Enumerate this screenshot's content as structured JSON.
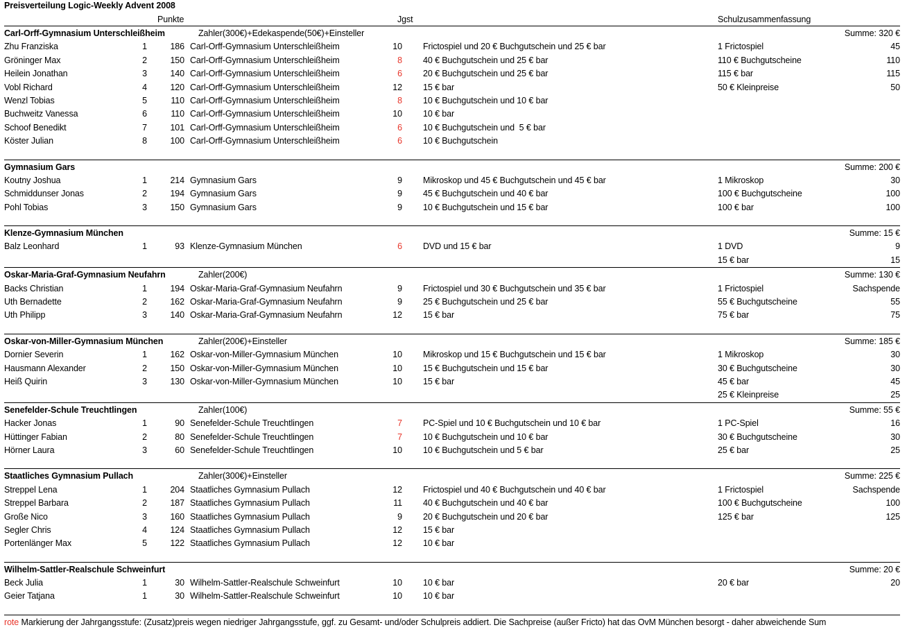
{
  "title": "Preisverteilung Logic-Weekly Advent 2008",
  "column_headers": {
    "punkte": "Punkte",
    "jgst": "Jgst",
    "schulzusammenfassung": "Schulzusammenfassung"
  },
  "colors": {
    "accent_red": "#e8352a",
    "text": "#000000",
    "background": "#ffffff"
  },
  "footer": {
    "highlight": "rote",
    "text": " Markierung der Jahrgangsstufe: (Zusatz)preis wegen niedriger Jahrgangsstufe, ggf. zu Gesamt- und/oder Schulpreis addiert. Die Sachpreise (außer Fricto) hat das OvM München besorgt - daher abweichende Sum"
  },
  "sections": [
    {
      "school": "Carl-Orff-Gymnasium Unterschleißheim",
      "payer": "Zahler(300€)+Edekaspende(50€)+Einsteller",
      "summe": "Summe: 320 €",
      "spacer": true,
      "rows": [
        {
          "name": "Zhu Franziska",
          "rank": "1",
          "points": "186",
          "school": "Carl-Orff-Gymnasium Unterschleißheim",
          "jgst": "10",
          "jgst_red": false,
          "prize": "Frictospiel und 20 € Buchgutschein und 25 € bar",
          "sum_label": "1 Frictospiel",
          "sum_value": "45"
        },
        {
          "name": "Gröninger Max",
          "rank": "2",
          "points": "150",
          "school": "Carl-Orff-Gymnasium Unterschleißheim",
          "jgst": "8",
          "jgst_red": true,
          "prize": "40 € Buchgutschein und 25 € bar",
          "sum_label": "110 € Buchgutscheine",
          "sum_value": "110"
        },
        {
          "name": "Heilein Jonathan",
          "rank": "3",
          "points": "140",
          "school": "Carl-Orff-Gymnasium Unterschleißheim",
          "jgst": "6",
          "jgst_red": true,
          "prize": "20 € Buchgutschein und 25 € bar",
          "sum_label": "115 € bar",
          "sum_value": "115"
        },
        {
          "name": "Vobl Richard",
          "rank": "4",
          "points": "120",
          "school": "Carl-Orff-Gymnasium Unterschleißheim",
          "jgst": "12",
          "jgst_red": false,
          "prize": "15 € bar",
          "sum_label": "50 € Kleinpreise",
          "sum_value": "50"
        },
        {
          "name": "Wenzl Tobias",
          "rank": "5",
          "points": "110",
          "school": "Carl-Orff-Gymnasium Unterschleißheim",
          "jgst": "8",
          "jgst_red": true,
          "prize": "10 € Buchgutschein und 10 € bar",
          "sum_label": "",
          "sum_value": ""
        },
        {
          "name": "Buchweitz Vanessa",
          "rank": "6",
          "points": "110",
          "school": "Carl-Orff-Gymnasium Unterschleißheim",
          "jgst": "10",
          "jgst_red": false,
          "prize": "10 € bar",
          "sum_label": "",
          "sum_value": ""
        },
        {
          "name": "Schoof Benedikt",
          "rank": "7",
          "points": "101",
          "school": "Carl-Orff-Gymnasium Unterschleißheim",
          "jgst": "6",
          "jgst_red": true,
          "prize": "10 € Buchgutschein und  5 € bar",
          "sum_label": "",
          "sum_value": ""
        },
        {
          "name": "Köster Julian",
          "rank": "8",
          "points": "100",
          "school": "Carl-Orff-Gymnasium Unterschleißheim",
          "jgst": "6",
          "jgst_red": true,
          "prize": "10 € Buchgutschein",
          "sum_label": "",
          "sum_value": ""
        }
      ]
    },
    {
      "school": "Gymnasium Gars",
      "payer": "",
      "summe": "Summe: 200 €",
      "spacer": true,
      "rows": [
        {
          "name": "Koutny Joshua",
          "rank": "1",
          "points": "214",
          "school": "Gymnasium Gars",
          "jgst": "9",
          "jgst_red": false,
          "prize": "Mikroskop und 45 € Buchgutschein und 45 € bar",
          "sum_label": "1 Mikroskop",
          "sum_value": "30"
        },
        {
          "name": "Schmiddunser Jonas",
          "rank": "2",
          "points": "194",
          "school": "Gymnasium Gars",
          "jgst": "9",
          "jgst_red": false,
          "prize": "45 € Buchgutschein und 40 € bar",
          "sum_label": "100 € Buchgutscheine",
          "sum_value": "100"
        },
        {
          "name": "Pohl Tobias",
          "rank": "3",
          "points": "150",
          "school": "Gymnasium Gars",
          "jgst": "9",
          "jgst_red": false,
          "prize": "10 € Buchgutschein und 15 € bar",
          "sum_label": "100 € bar",
          "sum_value": "100"
        }
      ]
    },
    {
      "school": "Klenze-Gymnasium München",
      "payer": "",
      "summe": "Summe: 15 €",
      "spacer": false,
      "rows": [
        {
          "name": "Balz Leonhard",
          "rank": "1",
          "points": "93",
          "school": "Klenze-Gymnasium München",
          "jgst": "6",
          "jgst_red": true,
          "prize": "DVD und 15 € bar",
          "sum_label": "1 DVD",
          "sum_value": "9"
        },
        {
          "name": "",
          "rank": "",
          "points": "",
          "school": "",
          "jgst": "",
          "jgst_red": false,
          "prize": "",
          "sum_label": "15 € bar",
          "sum_value": "15"
        }
      ]
    },
    {
      "school": "Oskar-Maria-Graf-Gymnasium Neufahrn",
      "payer": "Zahler(200€)",
      "summe": "Summe: 130 €",
      "spacer": true,
      "rows": [
        {
          "name": "Backs Christian",
          "rank": "1",
          "points": "194",
          "school": "Oskar-Maria-Graf-Gymnasium Neufahrn",
          "jgst": "9",
          "jgst_red": false,
          "prize": "Frictospiel und 30 € Buchgutschein und 35 € bar",
          "sum_label": "1 Frictospiel",
          "sum_value": "Sachspende"
        },
        {
          "name": "Uth Bernadette",
          "rank": "2",
          "points": "162",
          "school": "Oskar-Maria-Graf-Gymnasium Neufahrn",
          "jgst": "9",
          "jgst_red": false,
          "prize": "25 € Buchgutschein und 25 € bar",
          "sum_label": "55 € Buchgutscheine",
          "sum_value": "55"
        },
        {
          "name": "Uth Philipp",
          "rank": "3",
          "points": "140",
          "school": "Oskar-Maria-Graf-Gymnasium Neufahrn",
          "jgst": "12",
          "jgst_red": false,
          "prize": "15 € bar",
          "sum_label": "75 € bar",
          "sum_value": "75"
        }
      ]
    },
    {
      "school": "Oskar-von-Miller-Gymnasium München",
      "payer": "Zahler(200€)+Einsteller",
      "summe": "Summe: 185 €",
      "spacer": false,
      "rows": [
        {
          "name": "Dornier Severin",
          "rank": "1",
          "points": "162",
          "school": "Oskar-von-Miller-Gymnasium München",
          "jgst": "10",
          "jgst_red": false,
          "prize": "Mikroskop und 15 € Buchgutschein und 15 € bar",
          "sum_label": "1 Mikroskop",
          "sum_value": "30"
        },
        {
          "name": "Hausmann Alexander",
          "rank": "2",
          "points": "150",
          "school": "Oskar-von-Miller-Gymnasium München",
          "jgst": "10",
          "jgst_red": false,
          "prize": "15 € Buchgutschein und 15 € bar",
          "sum_label": "30 € Buchgutscheine",
          "sum_value": "30"
        },
        {
          "name": "Heiß Quirin",
          "rank": "3",
          "points": "130",
          "school": "Oskar-von-Miller-Gymnasium München",
          "jgst": "10",
          "jgst_red": false,
          "prize": "15 € bar",
          "sum_label": "45 € bar",
          "sum_value": "45"
        },
        {
          "name": "",
          "rank": "",
          "points": "",
          "school": "",
          "jgst": "",
          "jgst_red": false,
          "prize": "",
          "sum_label": "25 € Kleinpreise",
          "sum_value": "25"
        }
      ]
    },
    {
      "school": "Senefelder-Schule Treuchtlingen",
      "payer": "Zahler(100€)",
      "summe": "Summe: 55 €",
      "spacer": true,
      "rows": [
        {
          "name": "Hacker Jonas",
          "rank": "1",
          "points": "90",
          "school": "Senefelder-Schule Treuchtlingen",
          "jgst": "7",
          "jgst_red": true,
          "prize": "PC-Spiel und 10 € Buchgutschein und 10 € bar",
          "sum_label": "1 PC-Spiel",
          "sum_value": "16"
        },
        {
          "name": "Hüttinger Fabian",
          "rank": "2",
          "points": "80",
          "school": "Senefelder-Schule Treuchtlingen",
          "jgst": "7",
          "jgst_red": true,
          "prize": "10 € Buchgutschein und 10 € bar",
          "sum_label": "30 € Buchgutscheine",
          "sum_value": "30"
        },
        {
          "name": "Hörner Laura",
          "rank": "3",
          "points": "60",
          "school": "Senefelder-Schule Treuchtlingen",
          "jgst": "10",
          "jgst_red": false,
          "prize": "10 € Buchgutschein und 5 € bar",
          "sum_label": "25 € bar",
          "sum_value": "25"
        }
      ]
    },
    {
      "school": "Staatliches Gymnasium Pullach",
      "payer": "Zahler(300€)+Einsteller",
      "summe": "Summe: 225 €",
      "spacer": true,
      "rows": [
        {
          "name": "Streppel Lena",
          "rank": "1",
          "points": "204",
          "school": "Staatliches Gymnasium Pullach",
          "jgst": "12",
          "jgst_red": false,
          "prize": "Frictospiel und 40 € Buchgutschein und 40 € bar",
          "sum_label": "1 Frictospiel",
          "sum_value": "Sachspende"
        },
        {
          "name": "Streppel Barbara",
          "rank": "2",
          "points": "187",
          "school": "Staatliches Gymnasium Pullach",
          "jgst": "11",
          "jgst_red": false,
          "prize": "40 € Buchgutschein und 40 € bar",
          "sum_label": "100 € Buchgutscheine",
          "sum_value": "100"
        },
        {
          "name": "Große Nico",
          "rank": "3",
          "points": "160",
          "school": "Staatliches Gymnasium Pullach",
          "jgst": "9",
          "jgst_red": false,
          "prize": "20 € Buchgutschein und 20 € bar",
          "sum_label": "125 € bar",
          "sum_value": "125"
        },
        {
          "name": "Segler Chris",
          "rank": "4",
          "points": "124",
          "school": "Staatliches Gymnasium Pullach",
          "jgst": "12",
          "jgst_red": false,
          "prize": "15 € bar",
          "sum_label": "",
          "sum_value": ""
        },
        {
          "name": "Portenlänger Max",
          "rank": "5",
          "points": "122",
          "school": "Staatliches Gymnasium Pullach",
          "jgst": "12",
          "jgst_red": false,
          "prize": "10 € bar",
          "sum_label": "",
          "sum_value": ""
        }
      ]
    },
    {
      "school": "Wilhelm-Sattler-Realschule Schweinfurt",
      "payer": "",
      "summe": "Summe: 20 €",
      "spacer": true,
      "rows": [
        {
          "name": "Beck Julia",
          "rank": "1",
          "points": "30",
          "school": "Wilhelm-Sattler-Realschule Schweinfurt",
          "jgst": "10",
          "jgst_red": false,
          "prize": "10 € bar",
          "sum_label": "20 € bar",
          "sum_value": "20"
        },
        {
          "name": "Geier Tatjana",
          "rank": "1",
          "points": "30",
          "school": "Wilhelm-Sattler-Realschule Schweinfurt",
          "jgst": "10",
          "jgst_red": false,
          "prize": "10 € bar",
          "sum_label": "",
          "sum_value": ""
        }
      ]
    }
  ]
}
